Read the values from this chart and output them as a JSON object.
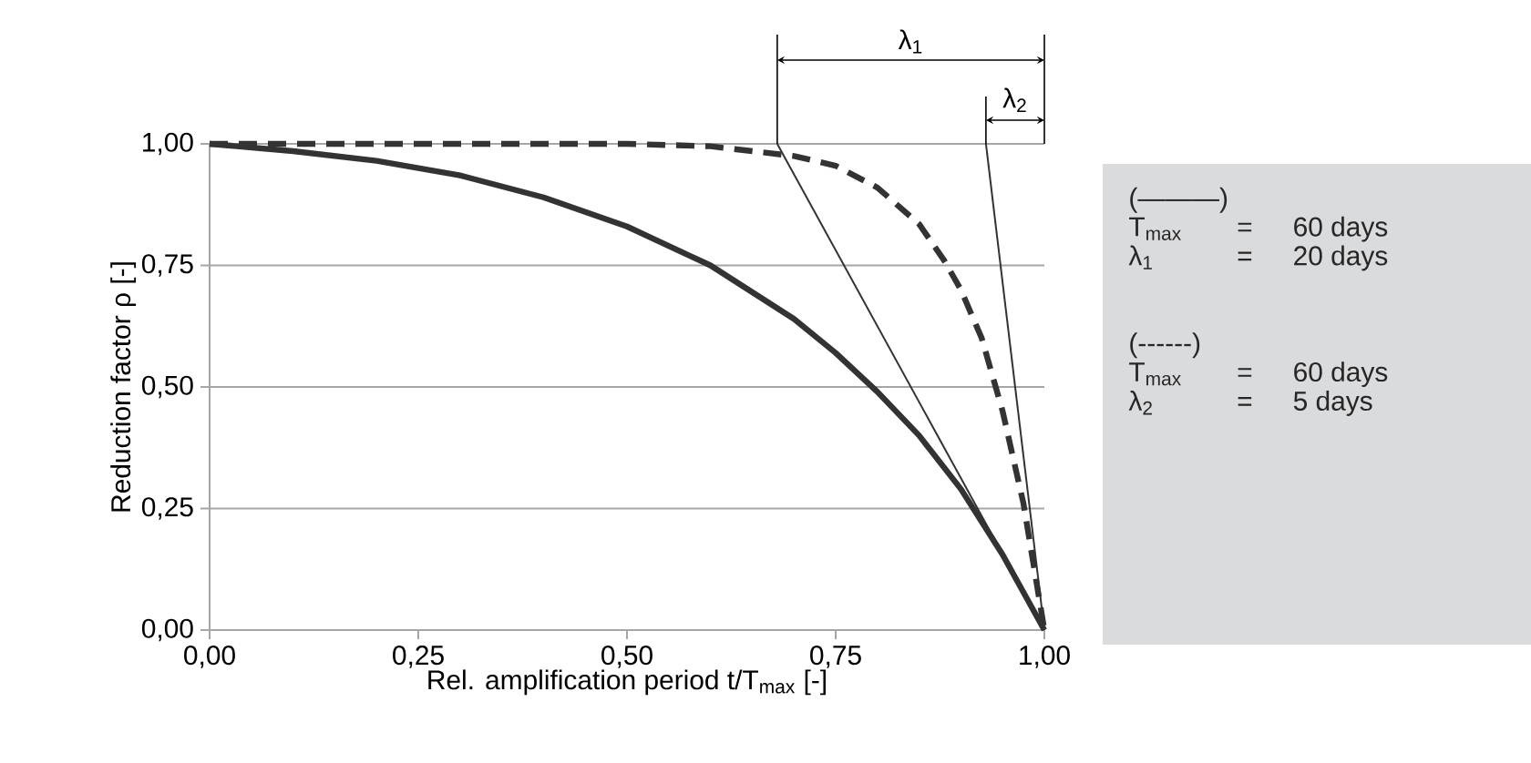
{
  "chart_data": {
    "type": "line",
    "xlabel": "Rel. amplification period t/T$_{max}$ [-]",
    "ylabel": "Reduction factor ρ  [-]",
    "x": [
      0,
      0.1,
      0.2,
      0.3,
      0.4,
      0.5,
      0.6,
      0.7,
      0.75,
      0.8,
      0.85,
      0.9,
      0.95,
      1.0
    ],
    "series": [
      {
        "color": "#333333",
        "line_style": "solid",
        "values": [
          1.0,
          0.985,
          0.965,
          0.935,
          0.89,
          0.83,
          0.75,
          0.64,
          0.57,
          0.49,
          0.4,
          0.29,
          0.155,
          0.0
        ]
      },
      {
        "color": "#333333",
        "line_style": "dashed",
        "x": [
          0,
          0.5,
          0.6,
          0.7,
          0.75,
          0.8,
          0.85,
          0.88,
          0.9,
          0.925,
          0.95,
          0.975,
          1.0
        ],
        "values": [
          1.0,
          1.0,
          0.995,
          0.975,
          0.955,
          0.91,
          0.835,
          0.76,
          0.7,
          0.6,
          0.45,
          0.26,
          0.0
        ]
      },
      {
        "color": "#333333",
        "line_style": "solid",
        "x": [
          0.68,
          1.0
        ],
        "values": [
          1.0,
          0.0
        ]
      },
      {
        "color": "#333333",
        "line_style": "solid",
        "x": [
          0.93,
          1.0
        ],
        "values": [
          1.0,
          0.0
        ]
      }
    ],
    "xlim": [
      0,
      1
    ],
    "ylim": [
      0,
      1
    ],
    "xticks": [
      {
        "value": 0,
        "label": "0,00"
      },
      {
        "value": 0.25,
        "label": "0,25"
      },
      {
        "value": 0.5,
        "label": "0,50"
      },
      {
        "value": 0.75,
        "label": "0,75"
      },
      {
        "value": 1,
        "label": "1,00"
      }
    ],
    "yticks": [
      {
        "value": 0,
        "label": "0,00"
      },
      {
        "value": 0.25,
        "label": "0,25"
      },
      {
        "value": 0.5,
        "label": "0,50"
      },
      {
        "value": 0.75,
        "label": "0,75"
      },
      {
        "value": 1,
        "label": "1,00"
      }
    ],
    "grid": "y",
    "annotations": [
      "λ$_{1}$",
      "λ$_{2}$",
      "(———)",
      "T$_{max}$",
      "=",
      "60 days",
      "λ$_{1}$",
      "=",
      "20 days",
      "(------)",
      "T$_{max}$",
      "=",
      "60 days",
      "λ$_{2}$",
      "=",
      "5 days"
    ]
  }
}
